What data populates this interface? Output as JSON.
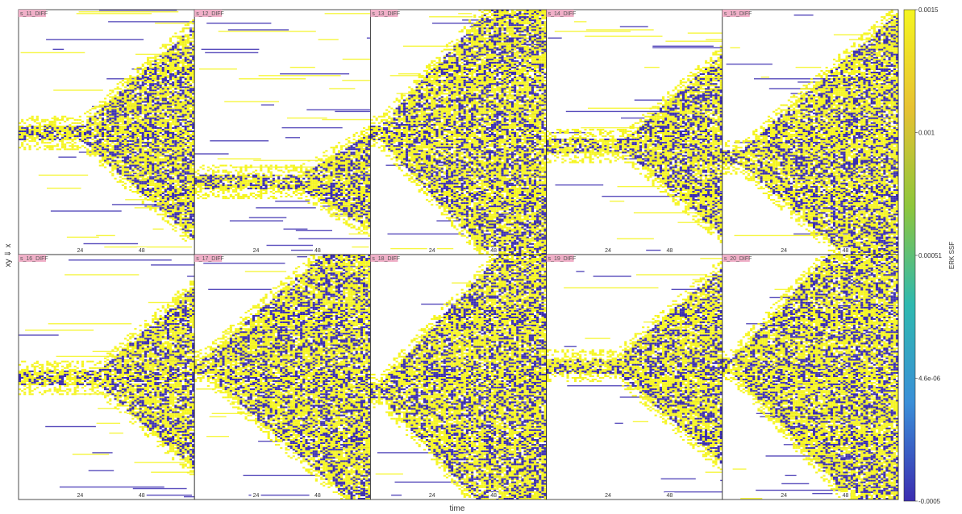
{
  "chart_data": {
    "type": "heatmap",
    "xlabel": "time",
    "ylabel": "xy ⇓ x",
    "colorbar": {
      "label": "ERK SSF",
      "ticks": [
        "0.0015",
        "0.001",
        "0.00051",
        "4.6e-06",
        "-0.0005"
      ],
      "range": [
        -0.0005,
        0.0015
      ],
      "colormap": [
        "#3b2db0",
        "#3a8fd8",
        "#2fb9b0",
        "#8fc63c",
        "#e7c233",
        "#f5f520"
      ]
    },
    "x_ticks": [
      "24",
      "48"
    ],
    "colors": {
      "high": "#f5f520",
      "low": "#3b2db0",
      "tag_background": "#f0b0c8",
      "frame": "#222222"
    },
    "panels": [
      {
        "name": "s_11_DIFF"
      },
      {
        "name": "s_12_DIFF"
      },
      {
        "name": "s_13_DIFF"
      },
      {
        "name": "s_14_DIFF"
      },
      {
        "name": "s_15_DIFF"
      },
      {
        "name": "s_16_DIFF"
      },
      {
        "name": "s_17_DIFF"
      },
      {
        "name": "s_18_DIFF"
      },
      {
        "name": "s_19_DIFF"
      },
      {
        "name": "s_20_DIFF"
      }
    ]
  }
}
